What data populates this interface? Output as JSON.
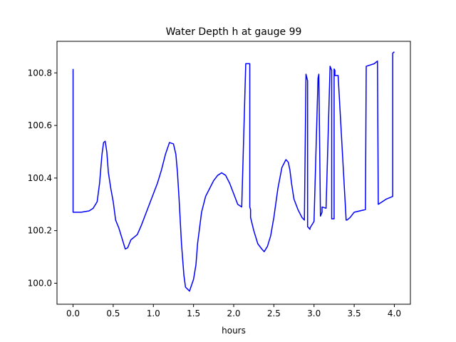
{
  "chart_data": {
    "type": "line",
    "title": "Water Depth h at gauge 99",
    "xlabel": "hours",
    "ylabel": "",
    "xlim": [
      -0.2,
      4.2
    ],
    "ylim": [
      99.92,
      100.92
    ],
    "xticks": [
      {
        "value": 0.0,
        "label": "0.0"
      },
      {
        "value": 0.5,
        "label": "0.5"
      },
      {
        "value": 1.0,
        "label": "1.0"
      },
      {
        "value": 1.5,
        "label": "1.5"
      },
      {
        "value": 2.0,
        "label": "2.0"
      },
      {
        "value": 2.5,
        "label": "2.5"
      },
      {
        "value": 3.0,
        "label": "3.0"
      },
      {
        "value": 3.5,
        "label": "3.5"
      },
      {
        "value": 4.0,
        "label": "4.0"
      }
    ],
    "yticks": [
      {
        "value": 100.0,
        "label": "100.0"
      },
      {
        "value": 100.2,
        "label": "100.2"
      },
      {
        "value": 100.4,
        "label": "100.4"
      },
      {
        "value": 100.6,
        "label": "100.6"
      },
      {
        "value": 100.8,
        "label": "100.8"
      }
    ],
    "grid": false,
    "series": [
      {
        "color": "#0000ff",
        "x": [
          0.0,
          0.0,
          0.1,
          0.2,
          0.25,
          0.3,
          0.33,
          0.36,
          0.38,
          0.4,
          0.42,
          0.44,
          0.47,
          0.5,
          0.53,
          0.57,
          0.6,
          0.65,
          0.68,
          0.7,
          0.72,
          0.74,
          0.76,
          0.8,
          0.85,
          0.9,
          0.95,
          1.0,
          1.05,
          1.1,
          1.15,
          1.2,
          1.25,
          1.28,
          1.3,
          1.32,
          1.35,
          1.38,
          1.4,
          1.45,
          1.5,
          1.53,
          1.55,
          1.6,
          1.65,
          1.7,
          1.75,
          1.8,
          1.85,
          1.9,
          1.95,
          2.0,
          2.05,
          2.1,
          2.15,
          2.2,
          2.2,
          2.21,
          2.21,
          2.25,
          2.3,
          2.35,
          2.38,
          2.42,
          2.46,
          2.5,
          2.55,
          2.6,
          2.65,
          2.68,
          2.7,
          2.72,
          2.75,
          2.8,
          2.85,
          2.88,
          2.9,
          2.92,
          2.92,
          2.95,
          2.95,
          3.0,
          3.05,
          3.06,
          3.08,
          3.1,
          3.1,
          3.15,
          3.2,
          3.22,
          3.22,
          3.25,
          3.25,
          3.26,
          3.26,
          3.3,
          3.4,
          3.41,
          3.45,
          3.5,
          3.64,
          3.65,
          3.75,
          3.79,
          3.8,
          3.85,
          3.9,
          3.98,
          3.98,
          4.0
        ],
        "y": [
          100.815,
          100.27,
          100.27,
          100.275,
          100.285,
          100.31,
          100.38,
          100.49,
          100.535,
          100.54,
          100.5,
          100.42,
          100.36,
          100.31,
          100.24,
          100.21,
          100.18,
          100.13,
          100.135,
          100.15,
          100.165,
          100.17,
          100.175,
          100.185,
          100.22,
          100.26,
          100.3,
          100.34,
          100.38,
          100.43,
          100.49,
          100.535,
          100.53,
          100.49,
          100.42,
          100.32,
          100.15,
          100.03,
          99.985,
          99.97,
          100.015,
          100.07,
          100.15,
          100.27,
          100.33,
          100.36,
          100.39,
          100.41,
          100.42,
          100.41,
          100.38,
          100.34,
          100.3,
          100.29,
          100.835,
          100.835,
          100.29,
          100.28,
          100.25,
          100.2,
          100.15,
          100.13,
          100.12,
          100.14,
          100.18,
          100.25,
          100.36,
          100.44,
          100.47,
          100.46,
          100.43,
          100.38,
          100.32,
          100.28,
          100.25,
          100.24,
          100.795,
          100.77,
          100.215,
          100.205,
          100.21,
          100.235,
          100.78,
          100.795,
          100.255,
          100.27,
          100.29,
          100.285,
          100.825,
          100.81,
          100.245,
          100.245,
          100.815,
          100.81,
          100.79,
          100.79,
          100.24,
          100.24,
          100.25,
          100.27,
          100.28,
          100.825,
          100.835,
          100.845,
          100.3,
          100.31,
          100.32,
          100.33,
          100.875,
          100.88
        ]
      }
    ]
  }
}
